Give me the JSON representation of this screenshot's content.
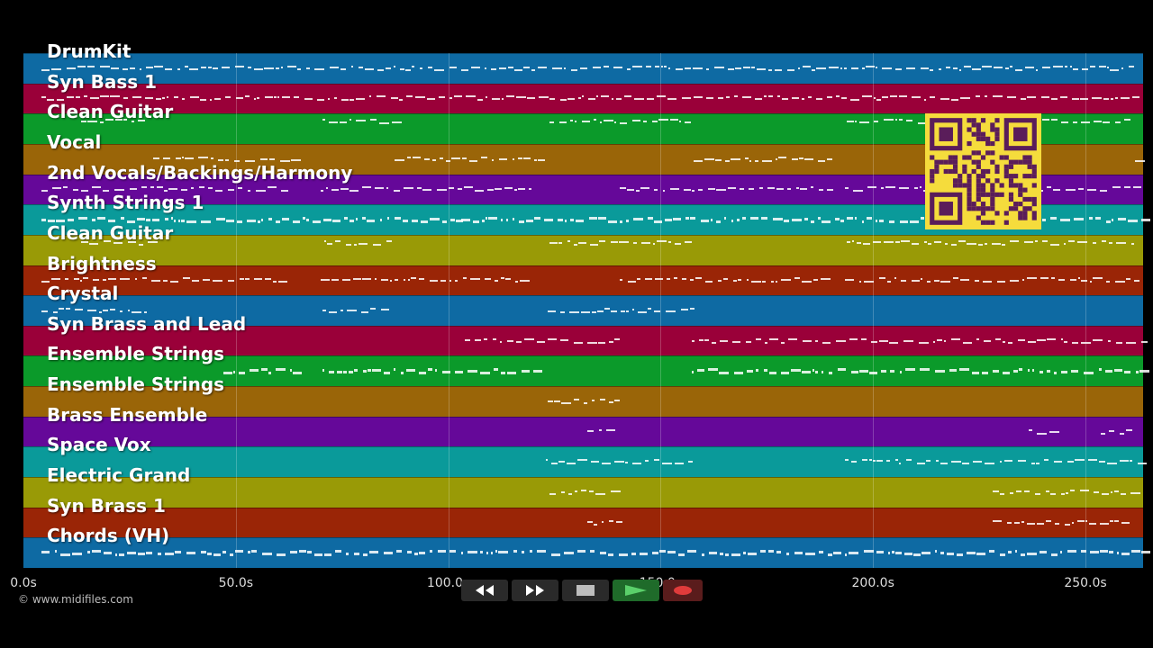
{
  "tracks": [
    {
      "name": "DrumKit",
      "color": "#0e6aa3"
    },
    {
      "name": "Syn Bass 1",
      "color": "#9a0039"
    },
    {
      "name": "Clean Guitar",
      "color": "#0b9a2a"
    },
    {
      "name": "Vocal",
      "color": "#9a6508"
    },
    {
      "name": "2nd Vocals/Backings/Harmony",
      "color": "#650899"
    },
    {
      "name": "Synth Strings 1",
      "color": "#0a9a9a"
    },
    {
      "name": "Clean Guitar",
      "color": "#999a06"
    },
    {
      "name": "Brightness",
      "color": "#9a2506"
    },
    {
      "name": "Crystal",
      "color": "#0e6aa3"
    },
    {
      "name": "Syn Brass and Lead",
      "color": "#9a0039"
    },
    {
      "name": "Ensemble Strings",
      "color": "#0b9a2a"
    },
    {
      "name": "Ensemble Strings",
      "color": "#9a6508"
    },
    {
      "name": "Brass Ensemble",
      "color": "#650899"
    },
    {
      "name": "Space Vox",
      "color": "#0a9a9a"
    },
    {
      "name": "Electric Grand",
      "color": "#999a06"
    },
    {
      "name": "Syn Brass 1",
      "color": "#9a2506"
    },
    {
      "name": "Chords (VH)",
      "color": "#0e6aa3"
    }
  ],
  "timeline": {
    "ticks": [
      "0.0s",
      "50.0s",
      "100.0s",
      "150.0s",
      "200.0s",
      "250.0s"
    ],
    "tick_seconds": [
      0,
      50,
      100,
      150,
      200,
      250
    ]
  },
  "copyright": "© www.midifiles.com",
  "controls": [
    {
      "name": "rewind-button",
      "icon": "rewind-icon"
    },
    {
      "name": "fast-forward-button",
      "icon": "fast-forward-icon"
    },
    {
      "name": "stop-button",
      "icon": "stop-icon"
    },
    {
      "name": "play-button",
      "icon": "play-icon"
    },
    {
      "name": "record-button",
      "icon": "record-icon"
    }
  ],
  "qr_code": {
    "color": "#f5dc3c",
    "dark": "#5a1d5a"
  }
}
